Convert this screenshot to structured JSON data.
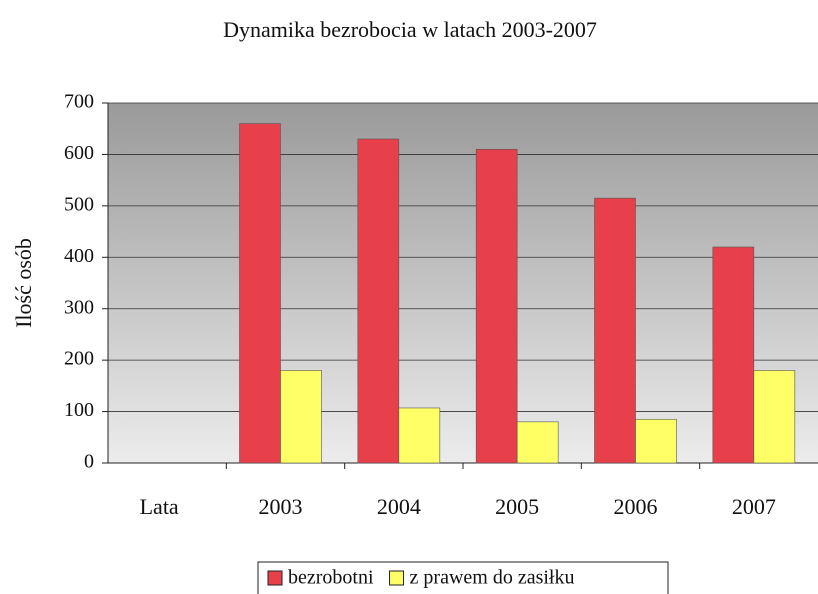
{
  "chart_data": {
    "type": "bar",
    "title": "Dynamika bezrobocia w latach 2003-2007",
    "y_label": "Ilość osób",
    "categories": [
      "Lata",
      "2003",
      "2004",
      "2005",
      "2006",
      "2007"
    ],
    "series": [
      {
        "name": "bezrobotni",
        "color": "#e8404a",
        "values": [
          null,
          660,
          630,
          610,
          515,
          420
        ]
      },
      {
        "name": "z prawem do zasiłku",
        "color": "#ffff66",
        "values": [
          null,
          180,
          107,
          80,
          85,
          180
        ]
      }
    ],
    "ylim": [
      0,
      700
    ],
    "yticks": [
      0,
      100,
      200,
      300,
      400,
      500,
      600,
      700
    ],
    "grid": true,
    "legend": "bottom"
  }
}
